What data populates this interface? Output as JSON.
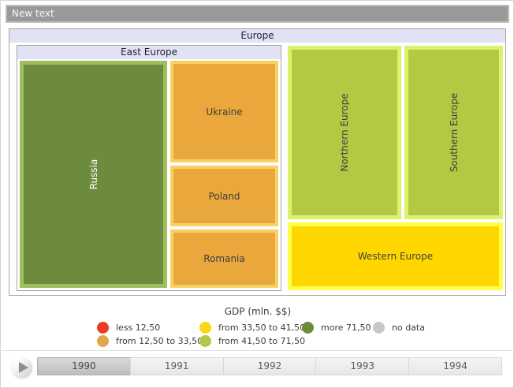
{
  "title_bar": {
    "text": "New text"
  },
  "treemap": {
    "root_label": "Europe",
    "east_group_label": "East Europe",
    "tiles": {
      "russia": {
        "label": "Russia",
        "fill": "#6d8b3c",
        "border": "#9fbe5d"
      },
      "ukraine": {
        "label": "Ukraine",
        "fill": "#e9a73c",
        "border": "#f8d166"
      },
      "poland": {
        "label": "Poland",
        "fill": "#e9a73c",
        "border": "#f8d166"
      },
      "romania": {
        "label": "Romania",
        "fill": "#e9a73c",
        "border": "#f8d166"
      },
      "northern": {
        "label": "Northern Europe",
        "fill": "#b3c944",
        "border": "#dcf26c"
      },
      "southern": {
        "label": "Southern Europe",
        "fill": "#b3c944",
        "border": "#dcf26c"
      },
      "western": {
        "label": "Western Europe",
        "fill": "#ffd600",
        "border": "#feff4a"
      }
    }
  },
  "legend": {
    "title": "GDP (mln. $$)",
    "items": [
      {
        "label": "less 12,50",
        "color": "#ee3c24"
      },
      {
        "label": "from 12,50 to 33,50",
        "color": "#e0a64b"
      },
      {
        "label": "from 33,50 to 41,50",
        "color": "#fcd716"
      },
      {
        "label": "from 41,50 to 71,50",
        "color": "#b3c94c"
      },
      {
        "label": "more 71,50",
        "color": "#6d8b3c"
      },
      {
        "label": "no data",
        "color": "#c8c8c8"
      }
    ]
  },
  "timeline": {
    "years": [
      "1990",
      "1991",
      "1992",
      "1993",
      "1994"
    ],
    "selected_year": "1990"
  },
  "chart_data": {
    "type": "treemap",
    "title": "GDP (mln. $$)",
    "legend_position": "bottom",
    "current_frame": "1990",
    "frames": [
      "1990",
      "1991",
      "1992",
      "1993",
      "1994"
    ],
    "legend_bins": [
      {
        "label": "less 12,50",
        "color": "#ee3c24"
      },
      {
        "label": "from 12,50 to 33,50",
        "color": "#e0a64b"
      },
      {
        "label": "from 33,50 to 41,50",
        "color": "#fcd716"
      },
      {
        "label": "from 41,50 to 71,50",
        "color": "#b3c94c"
      },
      {
        "label": "more 71,50",
        "color": "#6d8b3c"
      },
      {
        "label": "no data",
        "color": "#c8c8c8"
      }
    ],
    "hierarchy": {
      "name": "Europe",
      "children": [
        {
          "name": "East Europe",
          "children": [
            {
              "name": "Russia",
              "gdp_bin": "more 71,50",
              "color": "#6d8b3c",
              "relative_area": "largest"
            },
            {
              "name": "Ukraine",
              "gdp_bin": "from 12,50 to 33,50",
              "color": "#e9a73c",
              "relative_area": "medium"
            },
            {
              "name": "Poland",
              "gdp_bin": "from 12,50 to 33,50",
              "color": "#e9a73c",
              "relative_area": "small"
            },
            {
              "name": "Romania",
              "gdp_bin": "from 12,50 to 33,50",
              "color": "#e9a73c",
              "relative_area": "small"
            }
          ]
        },
        {
          "name": "Northern Europe",
          "gdp_bin": "from 41,50 to 71,50",
          "color": "#b3c944",
          "relative_area": "large"
        },
        {
          "name": "Southern Europe",
          "gdp_bin": "from 41,50 to 71,50",
          "color": "#b3c944",
          "relative_area": "large"
        },
        {
          "name": "Western Europe",
          "gdp_bin": "from 33,50 to 41,50",
          "color": "#ffd600",
          "relative_area": "medium"
        }
      ]
    }
  }
}
